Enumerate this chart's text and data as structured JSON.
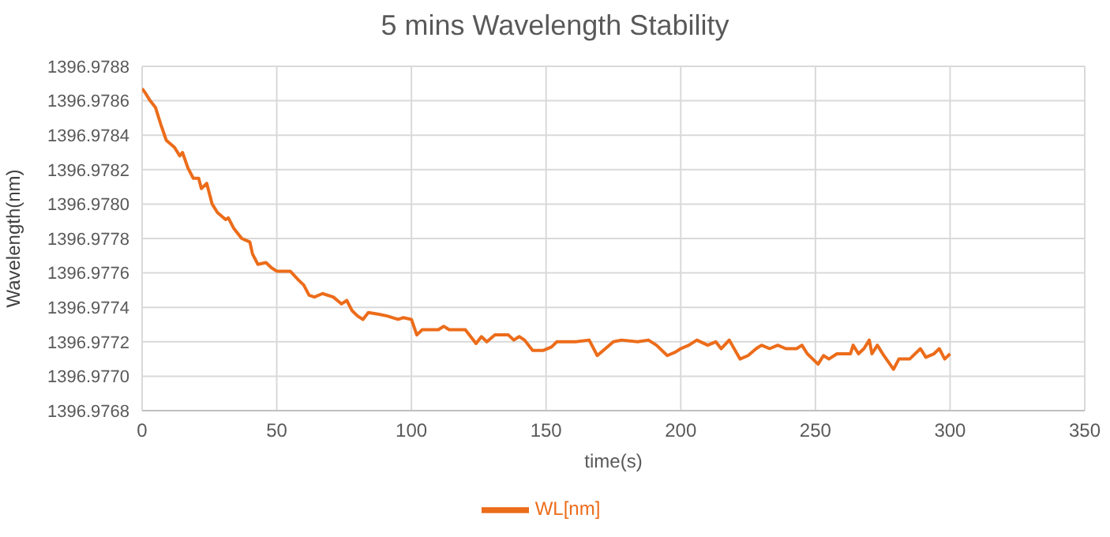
{
  "chart_data": {
    "type": "line",
    "title": "5 mins Wavelength Stability",
    "xlabel": "time(s)",
    "ylabel": "Wavelength(nm)",
    "xlim": [
      0,
      350
    ],
    "xticks": [
      0,
      50,
      100,
      150,
      200,
      250,
      300,
      350
    ],
    "ylim": [
      1396.9768,
      1396.9788
    ],
    "yticks": [
      1396.9768,
      {
        "value": 1396.977,
        "label": "1396.9770"
      },
      1396.9772,
      1396.9774,
      1396.9776,
      1396.9778,
      {
        "value": 1396.978,
        "label": "1396.9780"
      },
      1396.9782,
      1396.9784,
      1396.9786,
      1396.9788
    ],
    "grid": true,
    "legend": "bottom",
    "marker": "none",
    "line_style": "solid",
    "x": [
      0,
      1,
      3,
      5,
      7,
      9,
      12,
      14,
      15,
      17,
      19,
      21,
      22,
      24,
      26,
      28,
      31,
      32,
      34,
      37,
      40,
      41,
      43,
      46,
      48,
      50,
      55,
      58,
      60,
      62,
      64,
      67,
      71,
      74,
      76,
      78,
      80,
      82,
      84,
      88,
      91,
      95,
      97,
      100,
      102,
      104,
      110,
      112,
      114,
      120,
      124,
      126,
      128,
      131,
      136,
      138,
      140,
      142,
      145,
      149,
      152,
      154,
      158,
      161,
      166,
      169,
      172,
      175,
      178,
      184,
      188,
      191,
      195,
      198,
      200,
      203,
      206,
      210,
      213,
      215,
      218,
      222,
      225,
      228,
      230,
      233,
      236,
      239,
      243,
      245,
      247,
      249,
      251,
      253,
      255,
      258,
      263,
      264,
      266,
      268,
      270,
      271,
      273,
      275,
      279,
      281,
      285,
      289,
      291,
      294,
      296,
      298,
      300
    ],
    "series": [
      {
        "name": "WL[nm]",
        "color": "#ec6c1a",
        "values": [
          1396.97867,
          1396.97865,
          1396.9786,
          1396.97856,
          1396.97846,
          1396.97837,
          1396.97833,
          1396.97828,
          1396.9783,
          1396.97821,
          1396.97815,
          1396.97815,
          1396.97809,
          1396.97812,
          1396.978,
          1396.97795,
          1396.97791,
          1396.97792,
          1396.97786,
          1396.9778,
          1396.97778,
          1396.97771,
          1396.97765,
          1396.97766,
          1396.97763,
          1396.97761,
          1396.97761,
          1396.97756,
          1396.97753,
          1396.97747,
          1396.97746,
          1396.97748,
          1396.97746,
          1396.97742,
          1396.97744,
          1396.97738,
          1396.97735,
          1396.97733,
          1396.97737,
          1396.97736,
          1396.97735,
          1396.97733,
          1396.97734,
          1396.97733,
          1396.97724,
          1396.97727,
          1396.97727,
          1396.97729,
          1396.97727,
          1396.97727,
          1396.97719,
          1396.97723,
          1396.9772,
          1396.97724,
          1396.97724,
          1396.97721,
          1396.97723,
          1396.97721,
          1396.97715,
          1396.97715,
          1396.97717,
          1396.9772,
          1396.9772,
          1396.9772,
          1396.97721,
          1396.97712,
          1396.97716,
          1396.9772,
          1396.97721,
          1396.9772,
          1396.97721,
          1396.97718,
          1396.97712,
          1396.97714,
          1396.97716,
          1396.97718,
          1396.97721,
          1396.97718,
          1396.9772,
          1396.97716,
          1396.97721,
          1396.9771,
          1396.97712,
          1396.97716,
          1396.97718,
          1396.97716,
          1396.97718,
          1396.97716,
          1396.97716,
          1396.97718,
          1396.97713,
          1396.9771,
          1396.97707,
          1396.97712,
          1396.9771,
          1396.97713,
          1396.97713,
          1396.97718,
          1396.97713,
          1396.97716,
          1396.97721,
          1396.97713,
          1396.97718,
          1396.97713,
          1396.97704,
          1396.9771,
          1396.9771,
          1396.97716,
          1396.97711,
          1396.97713,
          1396.97716,
          1396.9771,
          1396.97713
        ]
      }
    ]
  }
}
